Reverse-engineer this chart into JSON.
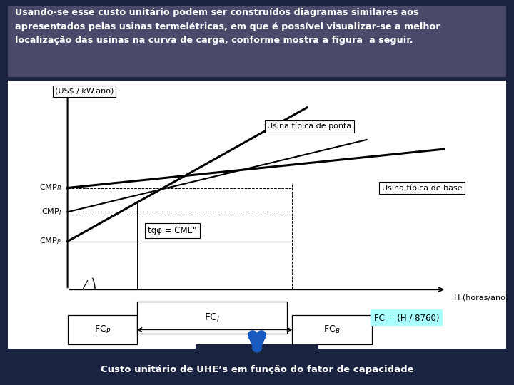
{
  "title_text": "Usando-se esse custo unitário podem ser construídos diagramas similares aos\napresentados pelas usinas termelétricas, em que é possível visualizar-se a melhor\nlocalização das usinas na curva de carga, conforme mostra a figura  a seguir.",
  "title_bg": "#4a4a6a",
  "title_color": "white",
  "chart_bg": "white",
  "outer_bg": "#1a2340",
  "ylabel": "(US$ / kW.ano)",
  "xlabel": "H (horas/ano)",
  "annotation_tg": "tgφ = CME\"",
  "label_ponta": "Usina típica de ponta",
  "label_base": "Usina típica de base",
  "fc_formula": "FC = (H / 8760)",
  "fc_formula_bg": "#aaffff",
  "caption": "Custo unitário de UHE’s em função do fator de capacidade",
  "caption_color": "white",
  "arrow_color": "#1a5bbf"
}
